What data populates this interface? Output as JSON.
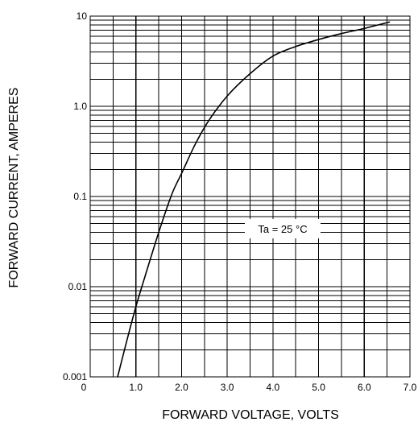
{
  "chart_data": {
    "type": "line",
    "title": "",
    "xlabel": "FORWARD VOLTAGE, VOLTS",
    "ylabel": "FORWARD CURRENT, AMPERES",
    "xlim": [
      0,
      7
    ],
    "ylim": [
      0.001,
      10
    ],
    "y_scale": "log",
    "grid": true,
    "x_ticks": [
      0,
      1,
      2,
      3,
      4,
      5,
      6,
      7
    ],
    "x_tick_labels": [
      "0",
      "1.0",
      "2.0",
      "3.0",
      "4.0",
      "5.0",
      "6.0",
      "7.0"
    ],
    "y_ticks": [
      0.001,
      0.01,
      0.1,
      1,
      10
    ],
    "y_tick_labels": [
      "0.001",
      "0.01",
      "0.1",
      "1.0",
      "10"
    ],
    "annotations": [
      "Ta = 25 °C"
    ],
    "series": [
      {
        "x": [
          0.6,
          0.8,
          1.0,
          1.2,
          1.5,
          1.8,
          2.0,
          2.3,
          2.6,
          3.0,
          3.5,
          4.0,
          4.5,
          5.0,
          5.5,
          6.0,
          6.55
        ],
        "y": [
          0.001,
          0.0025,
          0.006,
          0.013,
          0.04,
          0.11,
          0.18,
          0.38,
          0.7,
          1.3,
          2.3,
          3.6,
          4.6,
          5.5,
          6.4,
          7.3,
          8.6
        ]
      }
    ]
  },
  "colors": {
    "grid": "#000000",
    "curve": "#000000",
    "background": "#ffffff"
  }
}
